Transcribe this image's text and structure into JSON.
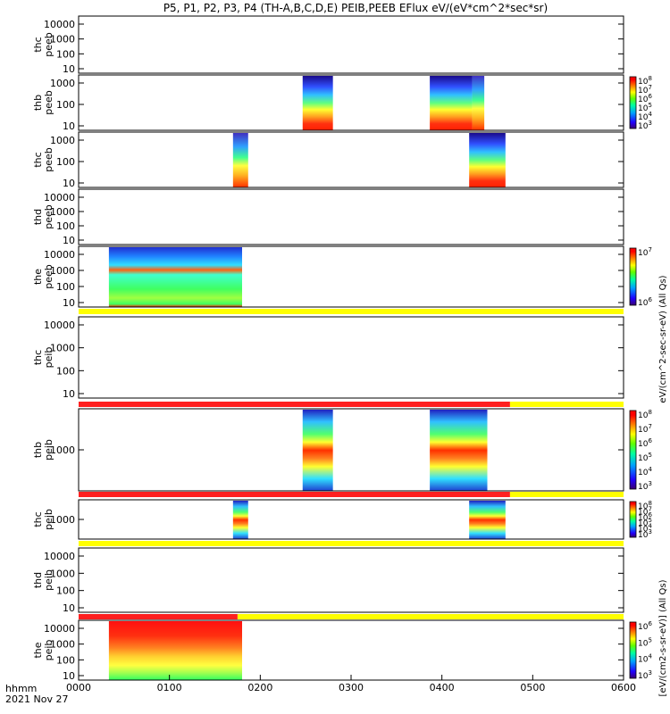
{
  "chart_data": {
    "type": "heatmap",
    "title": "P5, P1, P2, P3, P4 (TH-A,B,C,D,E) PEIB,PEEB EFlux eV/(eV*cm^2*sec*sr)",
    "xlabel_line1": "hhmm",
    "xlabel_line2": "2021 Nov 27",
    "x_ticks": [
      "0000",
      "0100",
      "0200",
      "0300",
      "0400",
      "0500",
      "0600"
    ],
    "x_range_minutes": [
      0,
      360
    ],
    "colorbar_label_upper": "eV/(cm^2-sec-sr-eV) (All Qs)",
    "colorbar_label_lower": "[eV/(cm2-s-sr-eV)] (All Qs)",
    "panels": [
      {
        "probe": "thc",
        "product": "peeb",
        "yticks": [
          "10",
          "100",
          "1000",
          "10000"
        ],
        "colorbar": null,
        "blocks": []
      },
      {
        "probe": "thb",
        "product": "peeb",
        "yticks": [
          "10",
          "100",
          "1000"
        ],
        "colorbar": [
          "10^3",
          "10^4",
          "10^5",
          "10^6",
          "10^7",
          "10^8"
        ],
        "blocks": [
          {
            "start": 148,
            "end": 168,
            "style": "electron_hot"
          },
          {
            "start": 232,
            "end": 260,
            "style": "electron_hot"
          },
          {
            "start": 260,
            "end": 268,
            "style": "electron_warm"
          }
        ]
      },
      {
        "probe": "thc",
        "product": "peeb",
        "yticks": [
          "10",
          "100",
          "1000"
        ],
        "colorbar": null,
        "blocks": [
          {
            "start": 102,
            "end": 112,
            "style": "electron_warm"
          },
          {
            "start": 258,
            "end": 282,
            "style": "electron_hot"
          }
        ]
      },
      {
        "probe": "thd",
        "product": "peeb",
        "yticks": [
          "10",
          "100",
          "1000",
          "10000"
        ],
        "colorbar": null,
        "blocks": []
      },
      {
        "probe": "the",
        "product": "peeb",
        "yticks": [
          "10",
          "100",
          "1000",
          "10000"
        ],
        "colorbar": [
          "10^6",
          "10^7"
        ],
        "blocks": [
          {
            "start": 20,
            "end": 108,
            "style": "electron_flat"
          }
        ]
      },
      {
        "probe": "thc",
        "product": "peib",
        "yticks": [
          "10",
          "100",
          "1000",
          "10000"
        ],
        "colorbar": null,
        "blocks": [],
        "status_bar": [
          {
            "start": 0,
            "end": 360,
            "color": "yellow"
          }
        ]
      },
      {
        "probe": "thb",
        "product": "peib",
        "yticks": [
          "1000"
        ],
        "colorbar": [
          "10^3",
          "10^4",
          "10^5",
          "10^6",
          "10^7",
          "10^8"
        ],
        "blocks": [
          {
            "start": 148,
            "end": 168,
            "style": "ion"
          },
          {
            "start": 232,
            "end": 270,
            "style": "ion"
          }
        ],
        "status_bar": [
          {
            "start": 0,
            "end": 285,
            "color": "red"
          },
          {
            "start": 285,
            "end": 360,
            "color": "yellow"
          }
        ]
      },
      {
        "probe": "thc",
        "product": "peib",
        "yticks": [
          "1000"
        ],
        "colorbar": [
          "10^3",
          "10^4",
          "10^5",
          "10^6",
          "10^7",
          "10^8"
        ],
        "blocks": [
          {
            "start": 102,
            "end": 112,
            "style": "ion"
          },
          {
            "start": 258,
            "end": 282,
            "style": "ion"
          }
        ],
        "status_bar": [
          {
            "start": 0,
            "end": 285,
            "color": "red"
          },
          {
            "start": 285,
            "end": 360,
            "color": "yellow"
          }
        ]
      },
      {
        "probe": "thd",
        "product": "peib",
        "yticks": [
          "10",
          "100",
          "1000",
          "10000"
        ],
        "colorbar": null,
        "blocks": [],
        "status_bar": [
          {
            "start": 0,
            "end": 360,
            "color": "yellow"
          }
        ]
      },
      {
        "probe": "the",
        "product": "peib",
        "yticks": [
          "10",
          "100",
          "1000",
          "10000"
        ],
        "colorbar": [
          "10^3",
          "10^4",
          "10^5",
          "10^6"
        ],
        "blocks": [
          {
            "start": 20,
            "end": 108,
            "style": "ion_dense"
          }
        ],
        "status_bar": [
          {
            "start": 0,
            "end": 105,
            "color": "red"
          },
          {
            "start": 105,
            "end": 360,
            "color": "yellow"
          }
        ]
      }
    ],
    "colors": {
      "status_red": "#ff2020",
      "status_yellow": "#ffff00"
    }
  }
}
